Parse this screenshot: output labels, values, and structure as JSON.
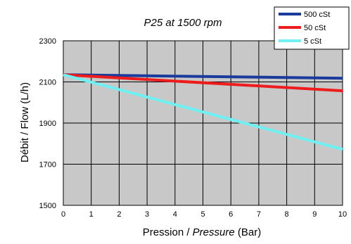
{
  "chart_data": {
    "type": "line",
    "title": "P25 at 1500 rpm",
    "xlabel_prefix": "Pression / ",
    "xlabel_italic": "Pressure",
    "xlabel_suffix": " (Bar)",
    "ylabel": "Débit / Flow (L/h)",
    "xlim": [
      0,
      10
    ],
    "ylim": [
      1500,
      2300
    ],
    "xticks": [
      0,
      1,
      2,
      3,
      4,
      5,
      6,
      7,
      8,
      9,
      10
    ],
    "yticks": [
      1500,
      1700,
      1900,
      2100,
      2300
    ],
    "grid": true,
    "legend_position": "top-right",
    "series": [
      {
        "name": "500 cSt",
        "color": "#1a3a9c",
        "x": [
          0,
          10
        ],
        "y": [
          2135,
          2118
        ]
      },
      {
        "name": "50 cSt",
        "color": "#ee1c1c",
        "x": [
          0,
          10
        ],
        "y": [
          2135,
          2057
        ]
      },
      {
        "name": "5 cSt",
        "color": "#6ff0f2",
        "x": [
          0,
          10
        ],
        "y": [
          2135,
          1772
        ]
      }
    ]
  },
  "colors": {
    "plot_background": "#c8c8c8",
    "grid": "#000000"
  }
}
